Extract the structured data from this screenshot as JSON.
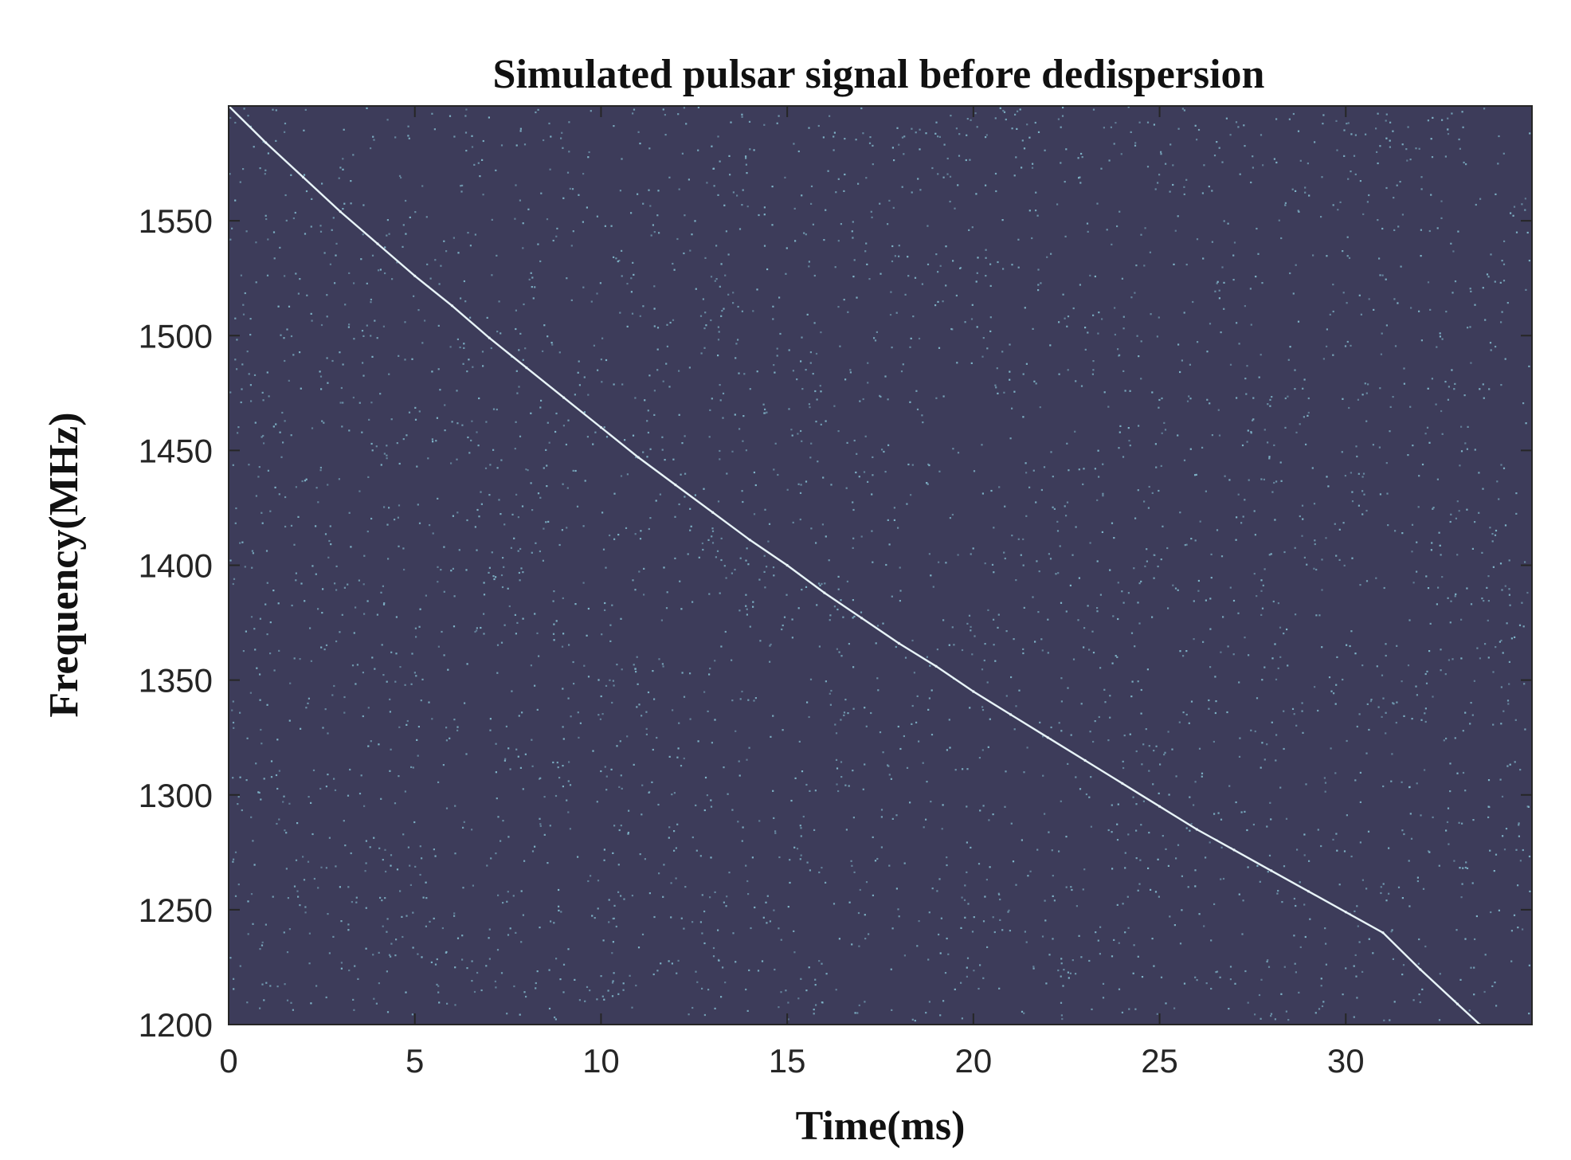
{
  "chart_data": {
    "type": "heatmap",
    "title": "Simulated pulsar signal before dedispersion",
    "xlabel": "Time(ms)",
    "ylabel": "Frequency(MHz)",
    "xlim": [
      0,
      35
    ],
    "ylim": [
      1200,
      1600
    ],
    "xticks": [
      "0",
      "5",
      "10",
      "15",
      "20",
      "25",
      "30"
    ],
    "yticks": [
      "1200",
      "1250",
      "1300",
      "1350",
      "1400",
      "1450",
      "1500",
      "1550"
    ],
    "grid": false,
    "background_color": "#3d3c5a",
    "noise_color": "#7fb5c9",
    "signal_color": "#e8f4f8",
    "noise_description": "random sparse bright dots across the whole time-frequency plane",
    "signal_curve": {
      "x": [
        0,
        1,
        2,
        3,
        4,
        5,
        6,
        7,
        8,
        9,
        10,
        11,
        12,
        13,
        14,
        15,
        16,
        17,
        18,
        19,
        20,
        21,
        22,
        23,
        24,
        25,
        26,
        27,
        28,
        29,
        30,
        31,
        32,
        33,
        33.6
      ],
      "y": [
        1600,
        1584,
        1569,
        1554,
        1540,
        1526,
        1513,
        1499,
        1486,
        1473,
        1460,
        1447,
        1435,
        1423,
        1411,
        1400,
        1388,
        1377,
        1366,
        1356,
        1345,
        1335,
        1325,
        1315,
        1305,
        1295,
        1285,
        1276,
        1267,
        1258,
        1249,
        1240,
        1224,
        1209,
        1200
      ]
    }
  }
}
